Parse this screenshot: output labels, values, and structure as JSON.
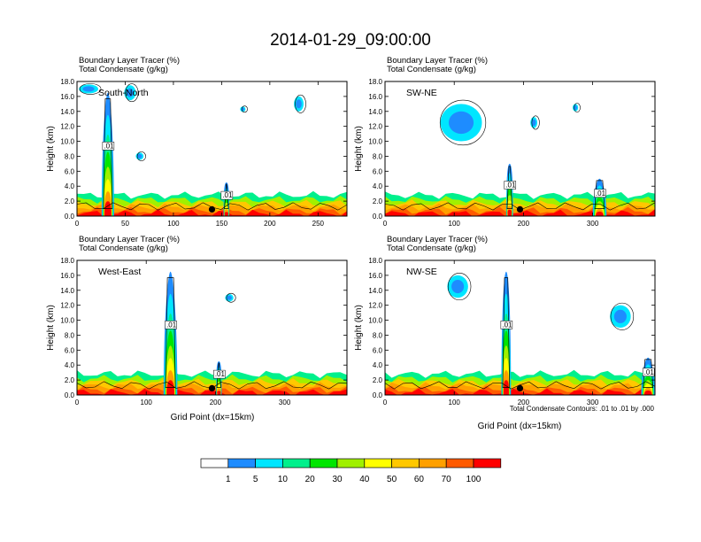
{
  "chart_data": {
    "type": "heatmap",
    "title": "2014-01-29_09:00:00",
    "shading_variable": "Boundary Layer Tracer   (%)",
    "contour_variable": "Total Condensate   (g/kg)",
    "ylabel": "Height (km)",
    "xlabel": "Grid Point (dx=15km)",
    "contour_note": "Total Condensate Contours: .01 to .01 by .000",
    "contour_label": ".01",
    "y_ticks": [
      "0.0",
      "2.0",
      "4.0",
      "6.0",
      "8.0",
      "10.0",
      "12.0",
      "14.0",
      "16.0",
      "18.0"
    ],
    "ylim": [
      0,
      18
    ],
    "colorbar": {
      "labels": [
        "1",
        "5",
        "10",
        "20",
        "30",
        "40",
        "50",
        "60",
        "70",
        "100"
      ],
      "colors": [
        "#ffffff",
        "#1e8cff",
        "#00e6ff",
        "#00f08c",
        "#00e600",
        "#a0f000",
        "#ffff00",
        "#ffc800",
        "#ffa000",
        "#ff5a00",
        "#ff0000"
      ]
    },
    "panels": [
      {
        "name": "South-North",
        "xlim": [
          0,
          280
        ],
        "x_ticks": [
          0,
          50,
          100,
          150,
          200,
          250
        ],
        "marker_x": 140,
        "plumes": [
          {
            "x": 32,
            "w": 13,
            "top": 16.5
          },
          {
            "x": 155,
            "w": 6,
            "top": 4.5
          }
        ],
        "clouds": [
          {
            "x": 12,
            "y": 17,
            "w": 20,
            "h": 1.2
          },
          {
            "x": 55,
            "y": 16.5,
            "w": 12,
            "h": 2
          },
          {
            "x": 65,
            "y": 8,
            "w": 8,
            "h": 1
          },
          {
            "x": 172,
            "y": 14.3,
            "w": 3,
            "h": 0.7
          },
          {
            "x": 230,
            "y": 15,
            "w": 10,
            "h": 2
          }
        ]
      },
      {
        "name": "SW-NE",
        "xlim": [
          0,
          390
        ],
        "x_ticks": [
          0,
          100,
          200,
          300
        ],
        "marker_x": 195,
        "plumes": [
          {
            "x": 180,
            "w": 10,
            "top": 7
          },
          {
            "x": 310,
            "w": 20,
            "top": 5
          }
        ],
        "clouds": [
          {
            "x": 110,
            "y": 12.5,
            "w": 60,
            "h": 5
          },
          {
            "x": 215,
            "y": 12.5,
            "w": 10,
            "h": 1.5
          },
          {
            "x": 275,
            "y": 14.5,
            "w": 8,
            "h": 1
          }
        ]
      },
      {
        "name": "West-East",
        "xlim": [
          0,
          390
        ],
        "x_ticks": [
          0,
          100,
          200,
          300
        ],
        "marker_x": 195,
        "plumes": [
          {
            "x": 135,
            "w": 20,
            "top": 16.5
          },
          {
            "x": 205,
            "w": 8,
            "top": 4.5
          }
        ],
        "clouds": [
          {
            "x": 220,
            "y": 13,
            "w": 12,
            "h": 1
          }
        ]
      },
      {
        "name": "NW-SE",
        "xlim": [
          0,
          390
        ],
        "x_ticks": [
          0,
          100,
          200,
          300
        ],
        "marker_x": 195,
        "plumes": [
          {
            "x": 175,
            "w": 14,
            "top": 16.5
          },
          {
            "x": 380,
            "w": 20,
            "top": 5
          }
        ],
        "clouds": [
          {
            "x": 105,
            "y": 14.5,
            "w": 30,
            "h": 3
          },
          {
            "x": 340,
            "y": 10.5,
            "w": 30,
            "h": 3
          }
        ]
      }
    ]
  }
}
